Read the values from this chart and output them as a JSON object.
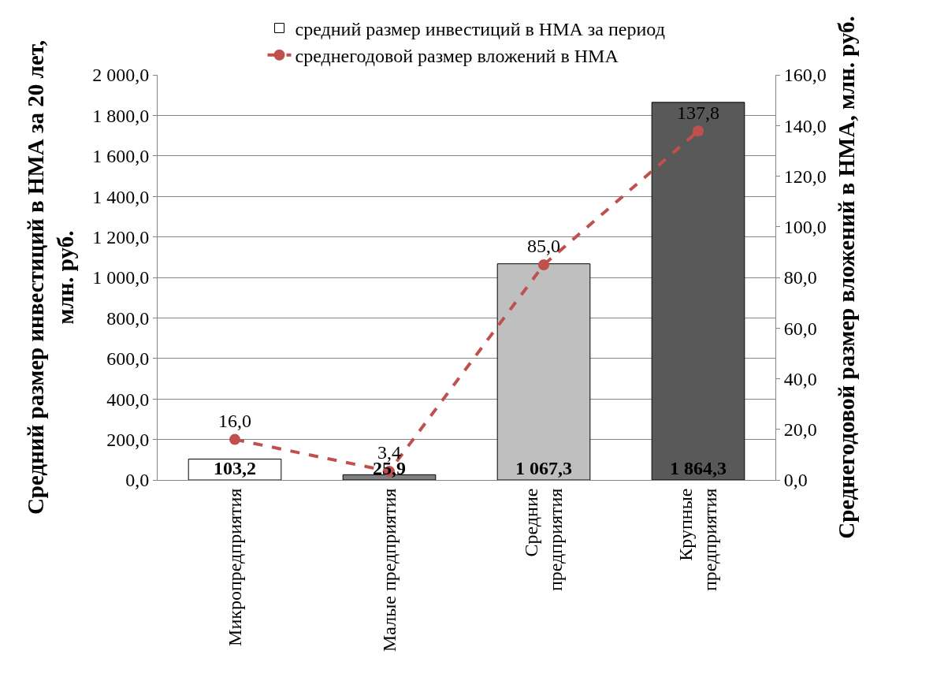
{
  "chart_data": {
    "type": "bar",
    "ylabel": "Средний размер инвестиций в НМА за 20 лет, млн. руб.",
    "y2label": "Среднегодовой размер вложений в НМА, млн. руб.",
    "categories": [
      "Микропредприятия",
      "Малые предприятия",
      "Средние\nпредприятия",
      "Крупные\nпредприятия"
    ],
    "series": [
      {
        "name": "средний размер инвестиций в НМА за период",
        "colors": [
          "#ffffff",
          "#7f7f7f",
          "#bfbfbf",
          "#595959"
        ],
        "values": [
          103.2,
          25.9,
          1067.3,
          1864.3
        ],
        "value_labels": [
          "103,2",
          "25,9",
          "1 067,3",
          "1 864,3"
        ]
      },
      {
        "name": "среднегодовой размер вложений в НМА",
        "type": "line",
        "axis": "y2",
        "color": "#c0504d",
        "marker": "circle",
        "line_style": "dashed",
        "values": [
          16.0,
          3.4,
          85.0,
          137.8
        ],
        "value_labels": [
          "16,0",
          "3,4",
          "85,0",
          "137,8"
        ]
      }
    ],
    "ylim": [
      0,
      2000
    ],
    "yticks": [
      {
        "value": 0,
        "label": "0,0"
      },
      {
        "value": 200,
        "label": "200,0"
      },
      {
        "value": 400,
        "label": "400,0"
      },
      {
        "value": 600,
        "label": "600,0"
      },
      {
        "value": 800,
        "label": "800,0"
      },
      {
        "value": 1000,
        "label": "1 000,0"
      },
      {
        "value": 1200,
        "label": "1 200,0"
      },
      {
        "value": 1400,
        "label": "1 400,0"
      },
      {
        "value": 1600,
        "label": "1 600,0"
      },
      {
        "value": 1800,
        "label": "1 800,0"
      },
      {
        "value": 2000,
        "label": "2 000,0"
      }
    ],
    "y2lim": [
      0,
      160
    ],
    "y2ticks": [
      {
        "value": 0,
        "label": "0,0"
      },
      {
        "value": 20,
        "label": "20,0"
      },
      {
        "value": 40,
        "label": "40,0"
      },
      {
        "value": 60,
        "label": "60,0"
      },
      {
        "value": 80,
        "label": "80,0"
      },
      {
        "value": 100,
        "label": "100,0"
      },
      {
        "value": 120,
        "label": "120,0"
      },
      {
        "value": 140,
        "label": "140,0"
      },
      {
        "value": 160,
        "label": "160,0"
      }
    ],
    "grid": "y",
    "legend": "top"
  }
}
